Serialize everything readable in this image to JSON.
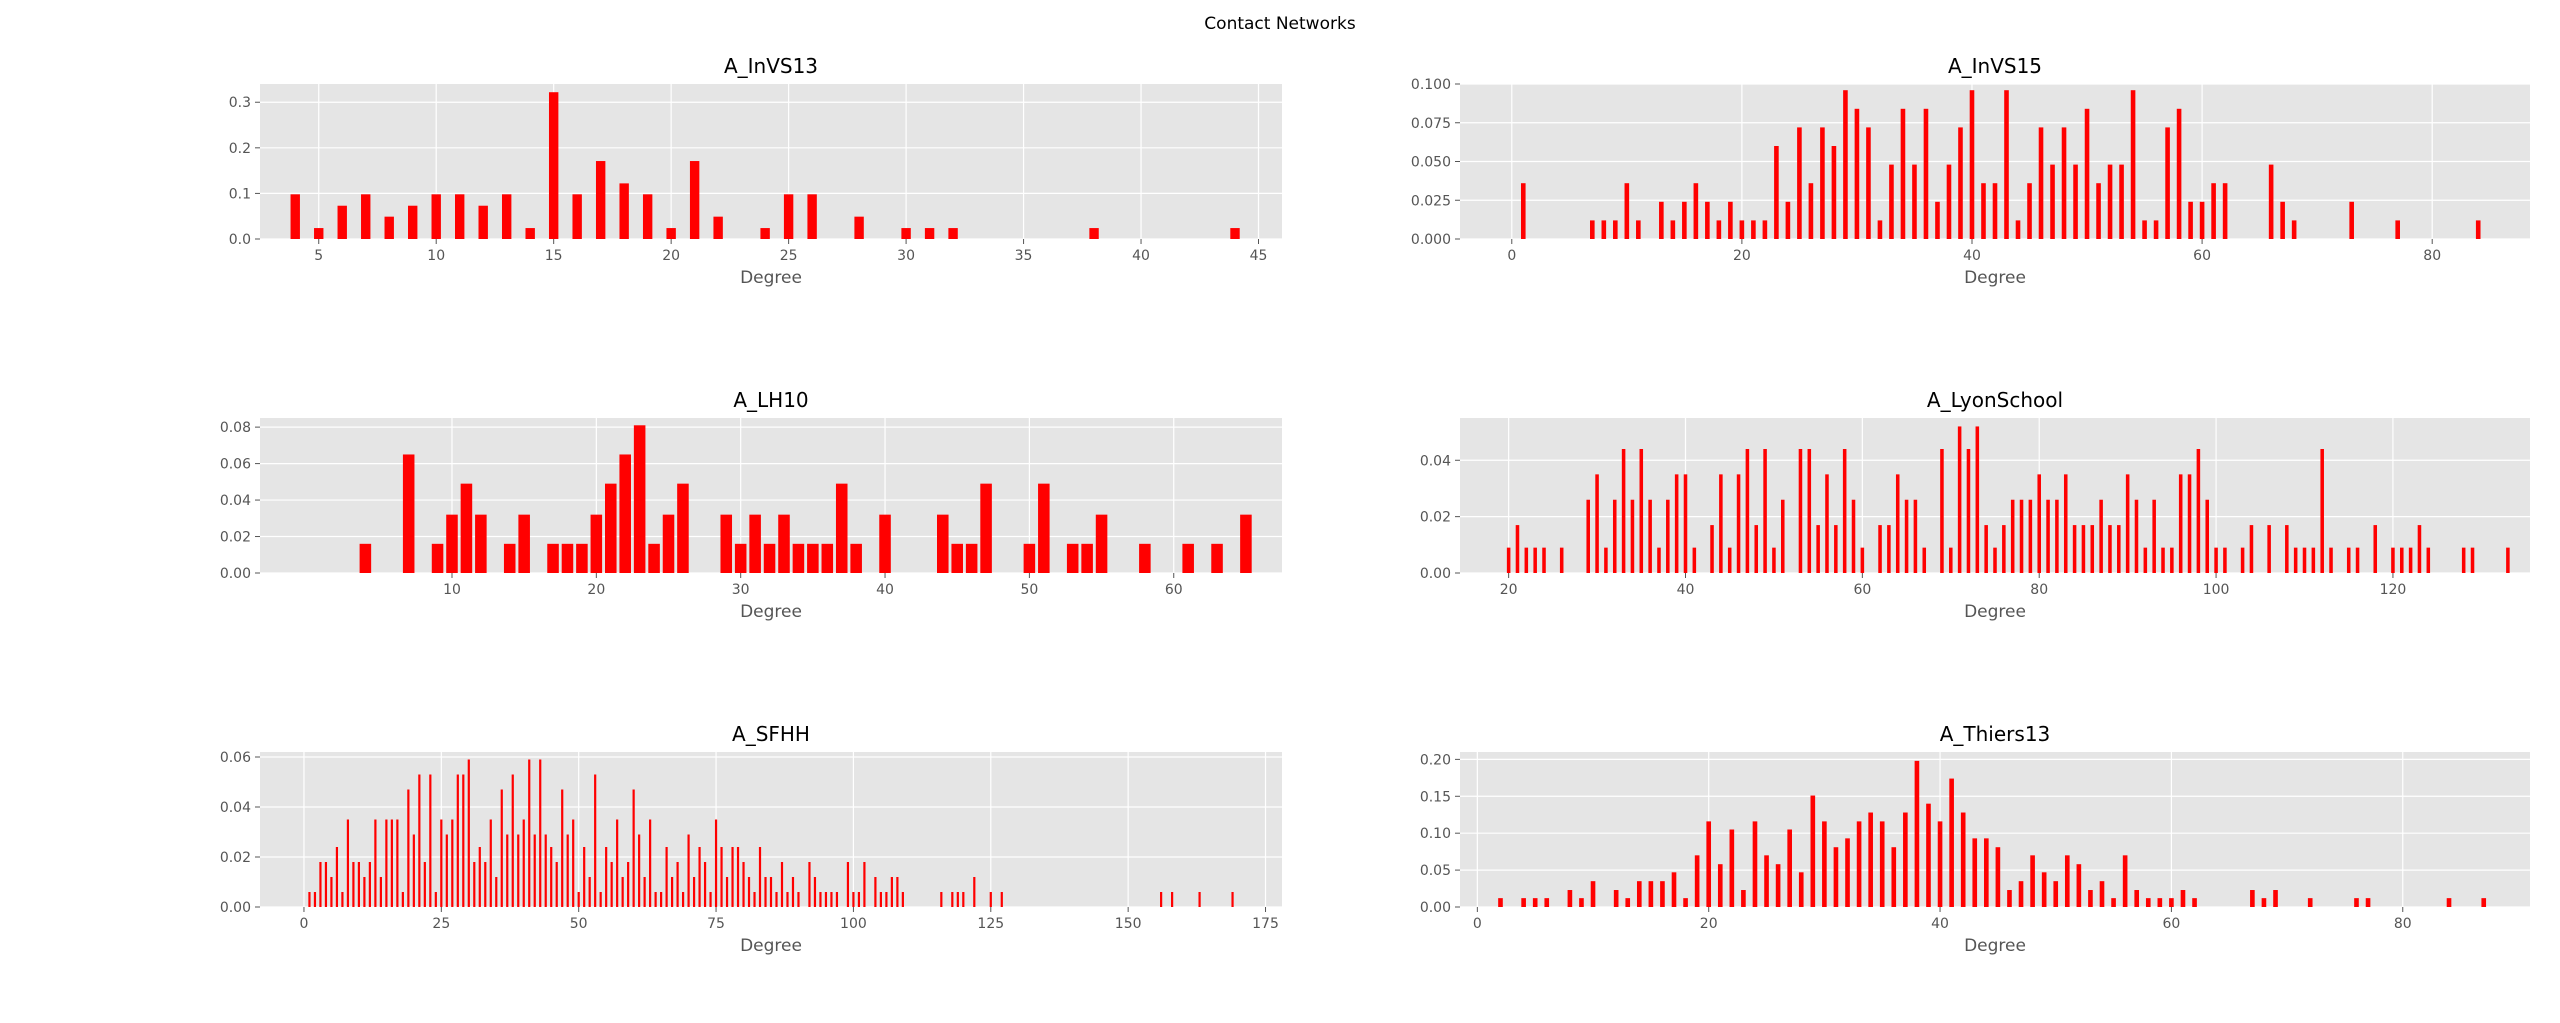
{
  "figure_title": "Contact Networks",
  "colors": {
    "bar": "#ff0000",
    "background": "#e5e5e5",
    "grid": "#ffffff",
    "tick_text": "#555555"
  },
  "chart_data": [
    {
      "type": "bar",
      "title": "A_InVS13",
      "xlabel": "Degree",
      "ylabel": "",
      "xlim": [
        2.5,
        46.0
      ],
      "ylim": [
        0,
        0.34
      ],
      "xticks": [
        5,
        10,
        15,
        20,
        25,
        30,
        35,
        40,
        45
      ],
      "yticks": [
        0.0,
        0.1,
        0.2,
        0.3
      ],
      "ytick_labels": [
        "0.0",
        "0.1",
        "0.2",
        "0.3"
      ],
      "bar_width": 0.4,
      "grid": true,
      "x": [
        4,
        5,
        6,
        7,
        8,
        9,
        10,
        11,
        12,
        13,
        14,
        15,
        16,
        17,
        18,
        19,
        20,
        21,
        22,
        24,
        25,
        26,
        28,
        30,
        31,
        32,
        38,
        44
      ],
      "values": [
        0.098,
        0.024,
        0.073,
        0.098,
        0.049,
        0.073,
        0.098,
        0.098,
        0.073,
        0.098,
        0.024,
        0.322,
        0.098,
        0.171,
        0.122,
        0.098,
        0.024,
        0.171,
        0.049,
        0.024,
        0.098,
        0.098,
        0.049,
        0.024,
        0.024,
        0.024,
        0.024,
        0.024
      ]
    },
    {
      "type": "bar",
      "title": "A_InVS15",
      "xlabel": "Degree",
      "ylabel": "",
      "xlim": [
        -4.5,
        88.5
      ],
      "ylim": [
        0,
        0.1
      ],
      "xticks": [
        0,
        20,
        40,
        60,
        80
      ],
      "yticks": [
        0.0,
        0.025,
        0.05,
        0.075,
        0.1
      ],
      "ytick_labels": [
        "0.000",
        "0.025",
        "0.050",
        "0.075",
        "0.100"
      ],
      "bar_width": 0.4,
      "grid": true,
      "x": [
        1,
        7,
        8,
        9,
        10,
        11,
        13,
        14,
        15,
        16,
        17,
        18,
        19,
        20,
        21,
        22,
        23,
        24,
        25,
        26,
        27,
        28,
        29,
        30,
        31,
        32,
        33,
        34,
        35,
        36,
        37,
        38,
        39,
        40,
        41,
        42,
        43,
        44,
        45,
        46,
        47,
        48,
        49,
        50,
        51,
        52,
        53,
        54,
        55,
        56,
        57,
        58,
        59,
        60,
        61,
        62,
        66,
        67,
        68,
        73,
        77,
        84
      ],
      "values": [
        0.036,
        0.012,
        0.012,
        0.012,
        0.036,
        0.012,
        0.024,
        0.012,
        0.024,
        0.036,
        0.024,
        0.012,
        0.024,
        0.012,
        0.012,
        0.012,
        0.06,
        0.024,
        0.072,
        0.036,
        0.072,
        0.06,
        0.096,
        0.084,
        0.072,
        0.012,
        0.048,
        0.084,
        0.048,
        0.084,
        0.024,
        0.048,
        0.072,
        0.096,
        0.036,
        0.036,
        0.096,
        0.012,
        0.036,
        0.072,
        0.048,
        0.072,
        0.048,
        0.084,
        0.036,
        0.048,
        0.048,
        0.096,
        0.012,
        0.012,
        0.072,
        0.084,
        0.024,
        0.024,
        0.036,
        0.036,
        0.048,
        0.024,
        0.012,
        0.024,
        0.012,
        0.012
      ]
    },
    {
      "type": "bar",
      "title": "A_LH10",
      "xlabel": "Degree",
      "ylabel": "",
      "xlim": [
        -3.3,
        67.5
      ],
      "ylim": [
        0,
        0.085
      ],
      "xticks": [
        10,
        20,
        30,
        40,
        50,
        60
      ],
      "yticks": [
        0.0,
        0.02,
        0.04,
        0.06,
        0.08
      ],
      "ytick_labels": [
        "0.00",
        "0.02",
        "0.04",
        "0.06",
        "0.08"
      ],
      "bar_width": 0.8,
      "grid": true,
      "x": [
        4,
        7,
        9,
        10,
        11,
        12,
        14,
        15,
        17,
        18,
        19,
        20,
        21,
        22,
        23,
        24,
        25,
        26,
        29,
        30,
        31,
        32,
        33,
        34,
        35,
        36,
        37,
        38,
        40,
        44,
        45,
        46,
        47,
        50,
        51,
        53,
        54,
        55,
        58,
        61,
        63,
        65
      ],
      "values": [
        0.016,
        0.065,
        0.016,
        0.032,
        0.049,
        0.032,
        0.016,
        0.032,
        0.016,
        0.016,
        0.016,
        0.032,
        0.049,
        0.065,
        0.081,
        0.016,
        0.032,
        0.049,
        0.032,
        0.016,
        0.032,
        0.016,
        0.032,
        0.016,
        0.016,
        0.016,
        0.049,
        0.016,
        0.032,
        0.032,
        0.016,
        0.016,
        0.049,
        0.016,
        0.049,
        0.016,
        0.016,
        0.032,
        0.016,
        0.016,
        0.016,
        0.032
      ]
    },
    {
      "type": "bar",
      "title": "A_LyonSchool",
      "xlabel": "Degree",
      "ylabel": "",
      "xlim": [
        14.5,
        135.5
      ],
      "ylim": [
        0,
        0.055
      ],
      "xticks": [
        20,
        40,
        60,
        80,
        100,
        120
      ],
      "yticks": [
        0.0,
        0.02,
        0.04
      ],
      "ytick_labels": [
        "0.00",
        "0.02",
        "0.04"
      ],
      "bar_width": 0.4,
      "grid": true,
      "x": [
        20,
        21,
        22,
        23,
        24,
        26,
        29,
        30,
        31,
        32,
        33,
        34,
        35,
        36,
        37,
        38,
        39,
        40,
        41,
        43,
        44,
        45,
        46,
        47,
        48,
        49,
        50,
        51,
        53,
        54,
        55,
        56,
        57,
        58,
        59,
        60,
        62,
        63,
        64,
        65,
        66,
        67,
        69,
        70,
        71,
        72,
        73,
        74,
        75,
        76,
        77,
        78,
        79,
        80,
        81,
        82,
        83,
        84,
        85,
        86,
        87,
        88,
        89,
        90,
        91,
        92,
        93,
        94,
        95,
        96,
        97,
        98,
        99,
        100,
        101,
        103,
        104,
        106,
        108,
        109,
        110,
        111,
        112,
        113,
        115,
        116,
        118,
        120,
        121,
        122,
        123,
        124,
        128,
        129,
        133
      ],
      "values": [
        0.009,
        0.017,
        0.009,
        0.009,
        0.009,
        0.009,
        0.026,
        0.035,
        0.009,
        0.026,
        0.044,
        0.026,
        0.044,
        0.026,
        0.009,
        0.026,
        0.035,
        0.035,
        0.009,
        0.017,
        0.035,
        0.009,
        0.035,
        0.044,
        0.017,
        0.044,
        0.009,
        0.026,
        0.044,
        0.044,
        0.017,
        0.035,
        0.017,
        0.044,
        0.026,
        0.009,
        0.017,
        0.017,
        0.035,
        0.026,
        0.026,
        0.009,
        0.044,
        0.009,
        0.052,
        0.044,
        0.052,
        0.017,
        0.009,
        0.017,
        0.026,
        0.026,
        0.026,
        0.035,
        0.026,
        0.026,
        0.035,
        0.017,
        0.017,
        0.017,
        0.026,
        0.017,
        0.017,
        0.035,
        0.026,
        0.009,
        0.026,
        0.009,
        0.009,
        0.035,
        0.035,
        0.044,
        0.026,
        0.009,
        0.009,
        0.009,
        0.017,
        0.017,
        0.017,
        0.009,
        0.009,
        0.009,
        0.044,
        0.009,
        0.009,
        0.009,
        0.017,
        0.009,
        0.009,
        0.009,
        0.017,
        0.009,
        0.009,
        0.009,
        0.009
      ]
    },
    {
      "type": "bar",
      "title": "A_SFHH",
      "xlabel": "Degree",
      "ylabel": "",
      "xlim": [
        -8.0,
        178.0
      ],
      "ylim": [
        0,
        0.062
      ],
      "xticks": [
        0,
        25,
        50,
        75,
        100,
        125,
        150,
        175
      ],
      "yticks": [
        0.0,
        0.02,
        0.04,
        0.06
      ],
      "ytick_labels": [
        "0.00",
        "0.02",
        "0.04",
        "0.06"
      ],
      "bar_width": 0.4,
      "grid": true,
      "x": [
        1,
        2,
        3,
        4,
        5,
        6,
        7,
        8,
        9,
        10,
        11,
        12,
        13,
        14,
        15,
        16,
        17,
        18,
        19,
        20,
        21,
        22,
        23,
        24,
        25,
        26,
        27,
        28,
        29,
        30,
        31,
        32,
        33,
        34,
        35,
        36,
        37,
        38,
        39,
        40,
        41,
        42,
        43,
        44,
        45,
        46,
        47,
        48,
        49,
        50,
        51,
        52,
        53,
        54,
        55,
        56,
        57,
        58,
        59,
        60,
        61,
        62,
        63,
        64,
        65,
        66,
        67,
        68,
        69,
        70,
        71,
        72,
        73,
        74,
        75,
        76,
        77,
        78,
        79,
        80,
        81,
        82,
        83,
        84,
        85,
        86,
        87,
        88,
        89,
        90,
        92,
        93,
        94,
        95,
        96,
        97,
        99,
        100,
        101,
        102,
        104,
        105,
        106,
        107,
        108,
        109,
        116,
        118,
        119,
        120,
        122,
        125,
        127,
        156,
        158,
        163,
        169
      ],
      "values": [
        0.006,
        0.006,
        0.018,
        0.018,
        0.012,
        0.024,
        0.006,
        0.035,
        0.018,
        0.018,
        0.012,
        0.018,
        0.035,
        0.012,
        0.035,
        0.035,
        0.035,
        0.006,
        0.047,
        0.029,
        0.053,
        0.018,
        0.053,
        0.006,
        0.035,
        0.029,
        0.035,
        0.053,
        0.053,
        0.059,
        0.018,
        0.024,
        0.018,
        0.035,
        0.012,
        0.047,
        0.029,
        0.053,
        0.029,
        0.035,
        0.059,
        0.029,
        0.059,
        0.029,
        0.024,
        0.018,
        0.047,
        0.029,
        0.035,
        0.006,
        0.024,
        0.012,
        0.053,
        0.006,
        0.024,
        0.018,
        0.035,
        0.012,
        0.018,
        0.047,
        0.029,
        0.012,
        0.035,
        0.006,
        0.006,
        0.024,
        0.012,
        0.018,
        0.006,
        0.029,
        0.012,
        0.024,
        0.018,
        0.006,
        0.035,
        0.024,
        0.012,
        0.024,
        0.024,
        0.018,
        0.012,
        0.006,
        0.024,
        0.012,
        0.012,
        0.006,
        0.018,
        0.006,
        0.012,
        0.006,
        0.018,
        0.012,
        0.006,
        0.006,
        0.006,
        0.006,
        0.018,
        0.006,
        0.006,
        0.018,
        0.012,
        0.006,
        0.006,
        0.012,
        0.012,
        0.006,
        0.006,
        0.006,
        0.006,
        0.006,
        0.012,
        0.006,
        0.006,
        0.006,
        0.006,
        0.006,
        0.006
      ]
    },
    {
      "type": "bar",
      "title": "A_Thiers13",
      "xlabel": "Degree",
      "ylabel": "",
      "xlim": [
        -1.5,
        91.0
      ],
      "ylim": [
        0,
        0.21
      ],
      "xticks": [
        0,
        20,
        40,
        60,
        80
      ],
      "yticks": [
        0.0,
        0.05,
        0.1,
        0.15,
        0.2
      ],
      "ytick_labels": [
        "0.00",
        "0.05",
        "0.10",
        "0.15",
        "0.20"
      ],
      "bar_width": 0.4,
      "grid": true,
      "x": [
        2,
        4,
        5,
        6,
        8,
        9,
        10,
        12,
        13,
        14,
        15,
        16,
        17,
        18,
        19,
        20,
        21,
        22,
        23,
        24,
        25,
        26,
        27,
        28,
        29,
        30,
        31,
        32,
        33,
        34,
        35,
        36,
        37,
        38,
        39,
        40,
        41,
        42,
        43,
        44,
        45,
        46,
        47,
        48,
        49,
        50,
        51,
        52,
        53,
        54,
        55,
        56,
        57,
        58,
        59,
        60,
        61,
        62,
        67,
        68,
        69,
        72,
        76,
        77,
        84,
        87
      ],
      "values": [
        0.012,
        0.012,
        0.012,
        0.012,
        0.023,
        0.012,
        0.035,
        0.023,
        0.012,
        0.035,
        0.035,
        0.035,
        0.047,
        0.012,
        0.07,
        0.116,
        0.058,
        0.105,
        0.023,
        0.116,
        0.07,
        0.058,
        0.105,
        0.047,
        0.151,
        0.116,
        0.081,
        0.093,
        0.116,
        0.128,
        0.116,
        0.081,
        0.128,
        0.198,
        0.14,
        0.116,
        0.174,
        0.128,
        0.093,
        0.093,
        0.081,
        0.023,
        0.035,
        0.07,
        0.047,
        0.035,
        0.07,
        0.058,
        0.023,
        0.035,
        0.012,
        0.07,
        0.023,
        0.012,
        0.012,
        0.012,
        0.023,
        0.012,
        0.023,
        0.012,
        0.023,
        0.012,
        0.012,
        0.012,
        0.012,
        0.012
      ]
    }
  ]
}
